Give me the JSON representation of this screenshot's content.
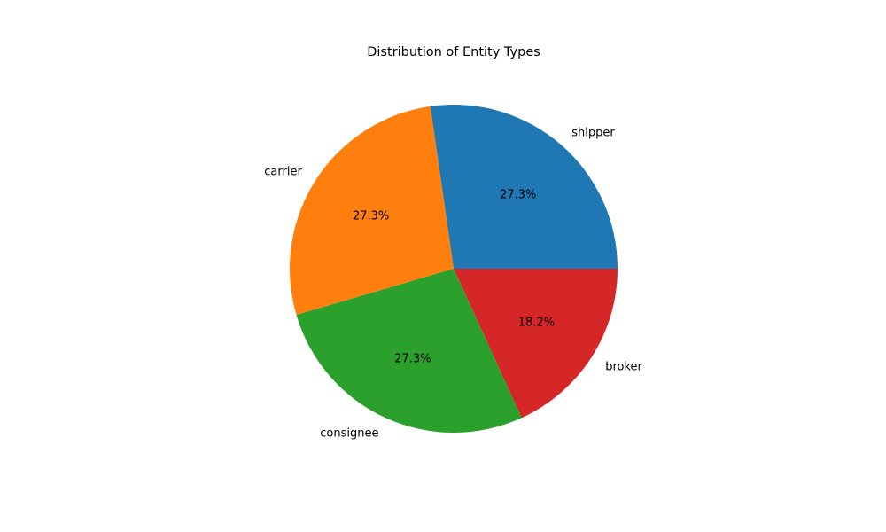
{
  "chart_data": {
    "type": "pie",
    "title": "Distribution of Entity Types",
    "start_angle_deg": 0,
    "direction": "counterclockwise",
    "slices": [
      {
        "label": "shipper",
        "value": 3,
        "percent_label": "27.3%",
        "color": "#1f77b4"
      },
      {
        "label": "carrier",
        "value": 3,
        "percent_label": "27.3%",
        "color": "#ff7f0e"
      },
      {
        "label": "consignee",
        "value": 3,
        "percent_label": "27.3%",
        "color": "#2ca02c"
      },
      {
        "label": "broker",
        "value": 2,
        "percent_label": "18.2%",
        "color": "#d62728"
      }
    ]
  }
}
